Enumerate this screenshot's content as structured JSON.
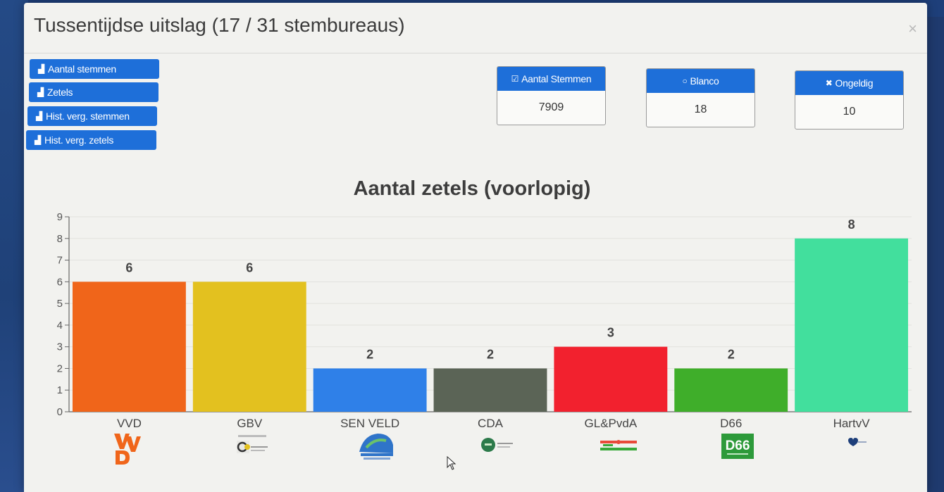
{
  "modal": {
    "title": "Tussentijdse uitslag (17 / 31 stembureaus)",
    "close_label": "×"
  },
  "side_buttons": [
    {
      "label": "Aantal stemmen",
      "icon": "bar-chart-icon"
    },
    {
      "label": "Zetels",
      "icon": "bar-chart-icon"
    },
    {
      "label": "Hist. verg. stemmen",
      "icon": "bar-chart-icon"
    },
    {
      "label": "Hist. verg. zetels",
      "icon": "bar-chart-icon"
    }
  ],
  "stats": [
    {
      "label": "Aantal Stemmen",
      "icon": "check-square-icon",
      "glyph": "☑",
      "value": "7909"
    },
    {
      "label": "Blanco",
      "icon": "circle-icon",
      "glyph": "○",
      "value": "18"
    },
    {
      "label": "Ongeldig",
      "icon": "x-icon",
      "glyph": "✖",
      "value": "10"
    }
  ],
  "colors": {
    "primary_button": "#1e6fd9",
    "VVD": "#f0651a",
    "GBV": "#e3c11f",
    "SEN VELD": "#2f80e8",
    "CDA": "#5b6456",
    "GL&PvdA": "#f2212e",
    "D66": "#3fae2a",
    "HartvV": "#42df9d"
  },
  "chart_data": {
    "type": "bar",
    "title": "Aantal zetels (voorlopig)",
    "categories": [
      "VVD",
      "GBV",
      "SEN VELD",
      "CDA",
      "GL&PvdA",
      "D66",
      "HartvV"
    ],
    "values": [
      6,
      6,
      2,
      2,
      3,
      2,
      8
    ],
    "data_labels": [
      "6",
      "6",
      "2",
      "2",
      "3",
      "2",
      "8"
    ],
    "yticks": [
      "0",
      "1",
      "2",
      "3",
      "4",
      "5",
      "6",
      "7",
      "8",
      "9"
    ],
    "ylim": [
      0,
      9
    ],
    "xlabel": "",
    "ylabel": "",
    "grid": true,
    "bar_colors": [
      "#f0651a",
      "#e3c11f",
      "#2f80e8",
      "#5b6456",
      "#f2212e",
      "#3fae2a",
      "#42df9d"
    ]
  },
  "logos": [
    {
      "party": "VVD",
      "icon": "vvd-logo-icon"
    },
    {
      "party": "GBV",
      "icon": "gbv-logo-icon"
    },
    {
      "party": "SEN VELD",
      "icon": "sen-veld-logo-icon"
    },
    {
      "party": "CDA",
      "icon": "cda-logo-icon"
    },
    {
      "party": "GL&PvdA",
      "icon": "gl-pvda-logo-icon"
    },
    {
      "party": "D66",
      "icon": "d66-logo-icon",
      "text": "D66"
    },
    {
      "party": "HartvV",
      "icon": "hartvv-logo-icon"
    }
  ]
}
